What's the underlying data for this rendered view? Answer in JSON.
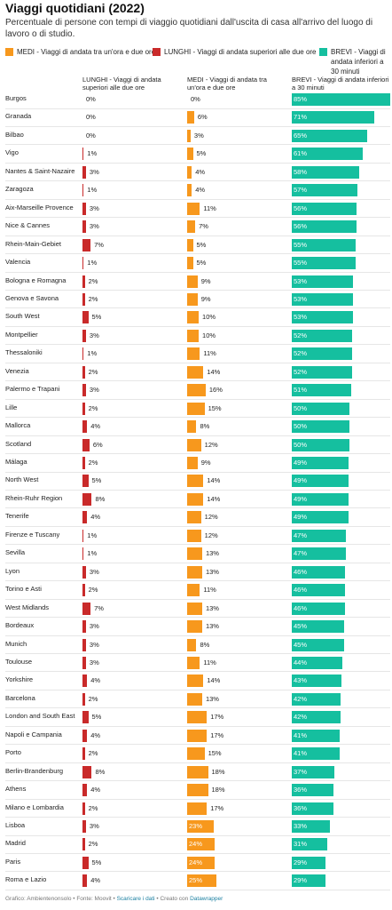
{
  "header": {
    "title": "Viaggi quotidiani (2022)",
    "subtitle": "Percentuale di persone con tempi di viaggio quotidiani dall'uscita di casa all'arrivo del luogo di lavoro o di studio."
  },
  "legend": {
    "medi": "MEDI - Viaggi di andata tra un'ora e due ore",
    "lunghi": "LUNGHI - Viaggi di andata superiori alle due ore",
    "brevi": "BREVI - Viaggi di andata inferiori a 30 minuti"
  },
  "columns": {
    "lunghi": "LUNGHI - Viaggi di andata superiori alle due ore",
    "medi": "MEDI - Viaggi di andata tra un'ora e due ore",
    "brevi": "BREVI - Viaggi di andata inferiori a 30 minuti"
  },
  "footer": {
    "source": "Grafico: Ambientenonsolo • Fonte: Moovit • ",
    "download": "Scaricare i dati",
    "created": " • Creato con ",
    "brand": "Datawrapper"
  },
  "colors": {
    "lunghi": "#c92a2a",
    "medi": "#f7981d",
    "brevi": "#15bf9f"
  },
  "chart_data": {
    "type": "bar",
    "title": "Viaggi quotidiani (2022)",
    "categories": [
      "Burgos",
      "Granada",
      "Bilbao",
      "Vigo",
      "Nantes & Saint-Nazaire",
      "Zaragoza",
      "Aix-Marseille Provence",
      "Nice & Cannes",
      "Rhein-Main-Gebiet",
      "Valencia",
      "Bologna e Romagna",
      "Genova e Savona",
      "South West",
      "Montpellier",
      "Thessaloniki",
      "Venezia",
      "Palermo e Trapani",
      "Lille",
      "Mallorca",
      "Scotland",
      "Málaga",
      "North West",
      "Rhein-Ruhr Region",
      "Tenerife",
      "Firenze e Tuscany",
      "Sevilla",
      "Lyon",
      "Torino e Asti",
      "West Midlands",
      "Bordeaux",
      "Munich",
      "Toulouse",
      "Yorkshire",
      "Barcelona",
      "London and South East",
      "Napoli e Campania",
      "Porto",
      "Berlin-Brandenburg",
      "Athens",
      "Milano e Lombardia",
      "Lisboa",
      "Madrid",
      "Paris",
      "Roma e Lazio"
    ],
    "series": [
      {
        "name": "LUNGHI - Viaggi di andata superiori alle due ore",
        "values": [
          0,
          0,
          0,
          1,
          3,
          1,
          3,
          3,
          7,
          1,
          2,
          2,
          5,
          3,
          1,
          2,
          3,
          2,
          4,
          6,
          2,
          5,
          8,
          4,
          1,
          1,
          3,
          2,
          7,
          3,
          3,
          3,
          4,
          2,
          5,
          4,
          2,
          8,
          4,
          2,
          3,
          2,
          5,
          4
        ]
      },
      {
        "name": "MEDI - Viaggi di andata tra un'ora e due ore",
        "values": [
          0,
          6,
          3,
          5,
          4,
          4,
          11,
          7,
          5,
          5,
          9,
          9,
          10,
          10,
          11,
          14,
          16,
          15,
          8,
          12,
          9,
          14,
          14,
          12,
          12,
          13,
          13,
          11,
          13,
          13,
          8,
          11,
          14,
          13,
          17,
          17,
          15,
          18,
          18,
          17,
          23,
          24,
          24,
          25
        ]
      },
      {
        "name": "BREVI - Viaggi di andata inferiori a 30 minuti",
        "values": [
          85,
          71,
          65,
          61,
          58,
          57,
          56,
          56,
          55,
          55,
          53,
          53,
          53,
          52,
          52,
          52,
          51,
          50,
          50,
          50,
          49,
          49,
          49,
          49,
          47,
          47,
          46,
          46,
          46,
          45,
          45,
          44,
          43,
          42,
          42,
          41,
          41,
          37,
          36,
          36,
          33,
          31,
          29,
          29
        ]
      }
    ],
    "value_suffix": "%",
    "xlim": [
      0,
      85
    ]
  }
}
